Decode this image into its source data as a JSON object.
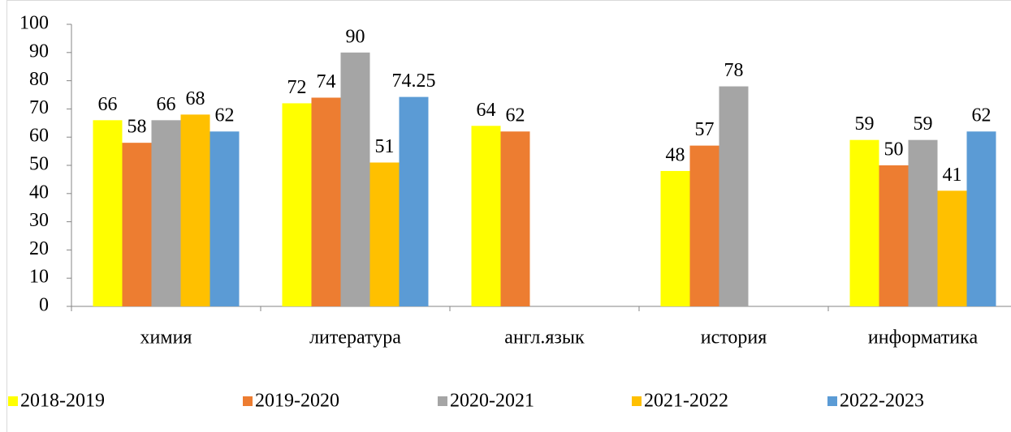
{
  "chart_data": {
    "type": "bar",
    "categories": [
      "химия",
      "литература",
      "англ.язык",
      "история",
      "информатика"
    ],
    "series": [
      {
        "name": "2018-2019",
        "color": "#ffff00",
        "values": [
          66,
          72,
          64,
          48,
          59
        ]
      },
      {
        "name": "2019-2020",
        "color": "#ed7d31",
        "values": [
          58,
          74,
          62,
          57,
          50
        ]
      },
      {
        "name": "2020-2021",
        "color": "#a5a5a5",
        "values": [
          66,
          90,
          null,
          78,
          59
        ]
      },
      {
        "name": "2021-2022",
        "color": "#ffc000",
        "values": [
          68,
          51,
          null,
          null,
          41
        ]
      },
      {
        "name": "2022-2023",
        "color": "#5b9bd5",
        "values": [
          62,
          74.25,
          null,
          null,
          62
        ]
      }
    ],
    "ylim": [
      0,
      100
    ],
    "yticks": [
      0,
      10,
      20,
      30,
      40,
      50,
      60,
      70,
      80,
      90,
      100
    ],
    "legend": "bottom"
  }
}
